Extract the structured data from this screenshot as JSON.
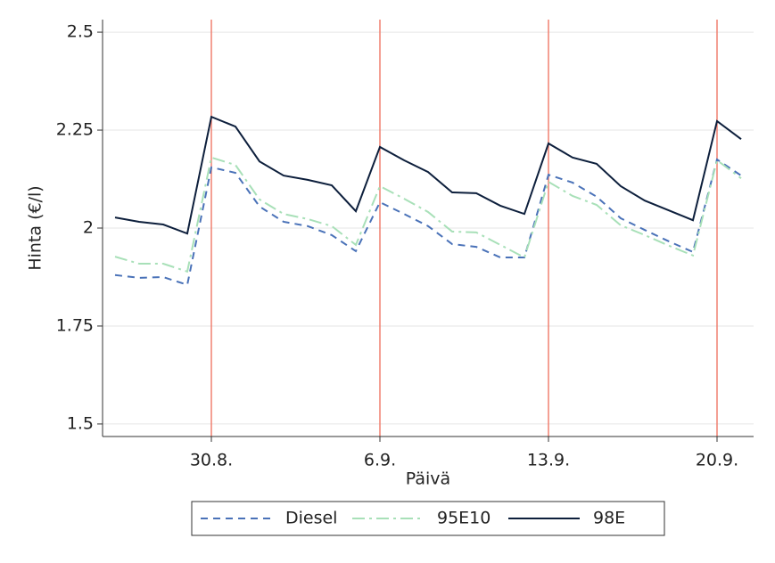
{
  "chart_data": {
    "type": "line",
    "x_label": "Päivä",
    "y_label": "Hinta (€/l)",
    "categories": [
      null,
      null,
      null,
      null,
      "30.8.",
      null,
      null,
      null,
      null,
      null,
      null,
      "6.9.",
      null,
      null,
      null,
      null,
      null,
      null,
      "13.9.",
      null,
      null,
      null,
      null,
      null,
      null,
      "20.9.",
      null
    ],
    "series": [
      {
        "name": "Diesel",
        "color": "#4a72b8",
        "dash": "dashed",
        "values": [
          1.88,
          1.873,
          1.875,
          1.855,
          2.155,
          2.141,
          2.055,
          2.016,
          2.005,
          1.982,
          1.941,
          2.066,
          2.036,
          2.005,
          1.959,
          1.952,
          1.925,
          1.925,
          2.136,
          2.116,
          2.08,
          2.025,
          1.995,
          1.966,
          1.939,
          2.175,
          2.134
        ]
      },
      {
        "name": "95E10",
        "color": "#a8e0b8",
        "dash": "dashdot",
        "values": [
          1.927,
          1.909,
          1.909,
          1.889,
          2.18,
          2.161,
          2.073,
          2.036,
          2.023,
          2.005,
          1.957,
          2.107,
          2.075,
          2.041,
          1.991,
          1.989,
          1.957,
          1.925,
          2.118,
          2.082,
          2.059,
          2.007,
          1.982,
          1.955,
          1.93,
          2.173,
          2.127
        ]
      },
      {
        "name": "98E",
        "color": "#0d1f3c",
        "dash": "solid",
        "values": [
          2.027,
          2.016,
          2.009,
          1.986,
          2.284,
          2.259,
          2.17,
          2.134,
          2.123,
          2.109,
          2.043,
          2.207,
          2.173,
          2.143,
          2.091,
          2.089,
          2.057,
          2.036,
          2.216,
          2.18,
          2.164,
          2.107,
          2.07,
          2.045,
          2.02,
          2.273,
          2.227
        ]
      }
    ],
    "ylim": [
      1.468,
      2.532
    ],
    "yticks": [
      1.5,
      1.75,
      2,
      2.25,
      2.5
    ],
    "grid": true,
    "reference_line_color": "#f08070",
    "legend": "bottom"
  }
}
